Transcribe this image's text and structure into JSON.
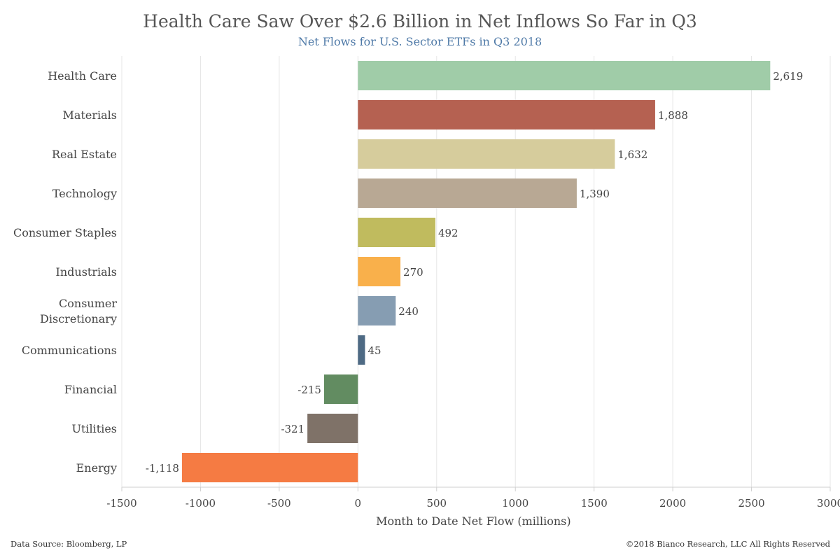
{
  "chart_data": {
    "type": "bar",
    "orientation": "horizontal",
    "title": "Health Care Saw Over $2.6 Billion in Net Inflows So Far in Q3",
    "subtitle": "Net Flows for U.S. Sector ETFs in Q3 2018",
    "xlabel": "Month to Date Net Flow (millions)",
    "ylabel": "",
    "xlim": [
      -1500,
      3000
    ],
    "xticks": [
      -1500,
      -1000,
      -500,
      0,
      500,
      1000,
      1500,
      2000,
      2500,
      3000
    ],
    "grid": true,
    "categories": [
      "Health Care",
      "Materials",
      "Real Estate",
      "Technology",
      "Consumer Staples",
      "Industrials",
      "Consumer Discretionary",
      "Communications",
      "Financial",
      "Utilities",
      "Energy"
    ],
    "category_lines": [
      [
        "Health Care"
      ],
      [
        "Materials"
      ],
      [
        "Real Estate"
      ],
      [
        "Technology"
      ],
      [
        "Consumer Staples"
      ],
      [
        "Industrials"
      ],
      [
        "Consumer",
        "Discretionary"
      ],
      [
        "Communications"
      ],
      [
        "Financial"
      ],
      [
        "Utilities"
      ],
      [
        "Energy"
      ]
    ],
    "values": [
      2619,
      1888,
      1632,
      1390,
      492,
      270,
      240,
      45,
      -215,
      -321,
      -1118
    ],
    "value_labels": [
      "2,619",
      "1,888",
      "1,632",
      "1,390",
      "492",
      "270",
      "240",
      "45",
      "-215",
      "-321",
      "-1,118"
    ],
    "colors": [
      "#a0cca8",
      "#b56151",
      "#d6cc9c",
      "#b8a894",
      "#c0bb5e",
      "#f9b04b",
      "#869db2",
      "#4e6a84",
      "#628c61",
      "#7f7268",
      "#f57b43"
    ]
  },
  "footer": {
    "source": "Data Source: Bloomberg, LP",
    "copyright": "©2018 Bianco Research, LLC  All Rights Reserved"
  }
}
